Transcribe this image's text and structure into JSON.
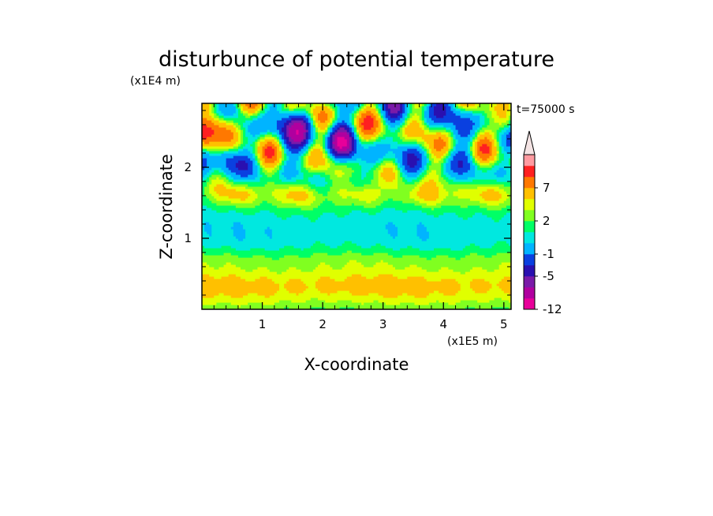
{
  "chart_data": {
    "type": "heatmap",
    "title": "disturbunce of potential temperature",
    "xlabel": "X-coordinate",
    "ylabel": "Z-coordinate",
    "x_unit": "(x1E5 m)",
    "y_unit": "(x1E4 m)",
    "time_label": "t=75000 s",
    "xlim": [
      0,
      5.12
    ],
    "ylim": [
      0,
      2.9
    ],
    "x_ticks": [
      1,
      2,
      3,
      4,
      5
    ],
    "x_tick_labels": [
      "1",
      "2",
      "3",
      "4",
      "5"
    ],
    "y_ticks": [
      1,
      2
    ],
    "y_tick_labels": [
      "1",
      "2"
    ],
    "colorbar": {
      "levels": [
        -12,
        -9,
        -7,
        -5,
        -3,
        -1,
        0,
        1,
        2,
        3,
        5,
        7,
        9,
        11
      ],
      "tick_values": [
        -12,
        -5,
        -1,
        2,
        7
      ],
      "tick_labels": [
        "-12",
        "-5",
        "-1",
        "2",
        "7"
      ],
      "extend": "max",
      "colors": [
        "#e8009a",
        "#b0009f",
        "#7a1aa8",
        "#2a10b0",
        "#0a40e0",
        "#00b4ff",
        "#00e8e0",
        "#00ff66",
        "#80ff20",
        "#e0ff00",
        "#ffc000",
        "#ff7800",
        "#ff2020",
        "#ff9aa0",
        "#f4e4e4"
      ]
    },
    "layers": [
      {
        "z_range": [
          0.0,
          0.12
        ],
        "value_class": "yellow-green"
      },
      {
        "z_range": [
          0.12,
          0.55
        ],
        "value_class": "orange-yellow (2 to 5)"
      },
      {
        "z_range": [
          0.55,
          0.8
        ],
        "value_class": "yellow (0 to 2)"
      },
      {
        "z_range": [
          0.8,
          1.45
        ],
        "value_class": "green (-1 to 0)"
      },
      {
        "z_range": [
          1.45,
          1.85
        ],
        "value_class": "yellow-orange bands (0 to 5)"
      },
      {
        "z_range": [
          1.85,
          2.9
        ],
        "value_class": "mixed wave pattern (-9 to 11)"
      }
    ]
  }
}
